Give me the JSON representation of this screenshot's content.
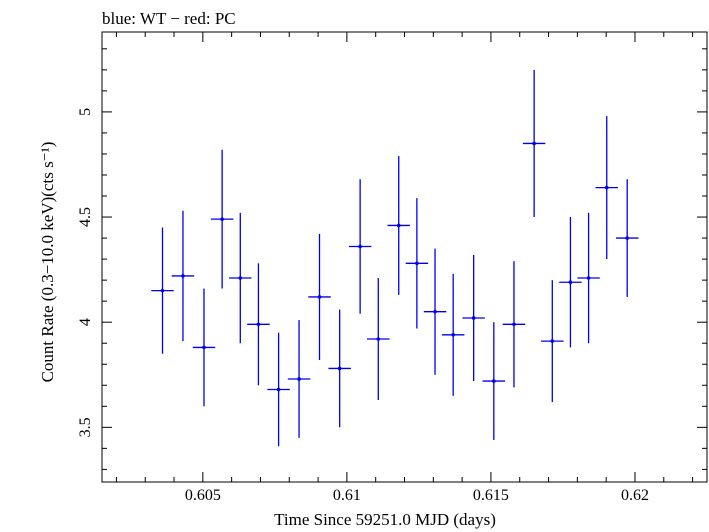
{
  "chart_data": {
    "type": "scatter",
    "title": "blue: WT − red: PC",
    "xlabel": "Time Since 59251.0 MJD (days)",
    "ylabel": "Count Rate (0.3−10.0 keV)(cts s⁻¹)",
    "xlim": [
      0.6015,
      0.6225
    ],
    "ylim": [
      3.24,
      5.38
    ],
    "x_ticks": [
      0.605,
      0.61,
      0.615,
      0.62
    ],
    "x_tick_labels": [
      "0.605",
      "0.61",
      "0.615",
      "0.62"
    ],
    "y_ticks": [
      3.5,
      4,
      4.5,
      5
    ],
    "y_tick_labels": [
      "3.5",
      "4",
      "4.5",
      "5"
    ],
    "grid": false,
    "series": [
      {
        "name": "WT",
        "color": "#0000ee",
        "points": [
          {
            "x": 0.6036,
            "y": 4.15,
            "xerr": 0.00039,
            "yerr": 0.3
          },
          {
            "x": 0.60431,
            "y": 4.22,
            "xerr": 0.00039,
            "yerr": 0.31
          },
          {
            "x": 0.60504,
            "y": 3.88,
            "xerr": 0.00039,
            "yerr": 0.28
          },
          {
            "x": 0.60567,
            "y": 4.49,
            "xerr": 0.00039,
            "yerr": 0.33
          },
          {
            "x": 0.6063,
            "y": 4.21,
            "xerr": 0.00039,
            "yerr": 0.31
          },
          {
            "x": 0.60693,
            "y": 3.99,
            "xerr": 0.00039,
            "yerr": 0.29
          },
          {
            "x": 0.60763,
            "y": 3.68,
            "xerr": 0.00039,
            "yerr": 0.27
          },
          {
            "x": 0.60834,
            "y": 3.73,
            "xerr": 0.00039,
            "yerr": 0.28
          },
          {
            "x": 0.60905,
            "y": 4.12,
            "xerr": 0.00039,
            "yerr": 0.3
          },
          {
            "x": 0.60975,
            "y": 3.78,
            "xerr": 0.00039,
            "yerr": 0.28
          },
          {
            "x": 0.61046,
            "y": 4.36,
            "xerr": 0.00039,
            "yerr": 0.32
          },
          {
            "x": 0.61109,
            "y": 3.92,
            "xerr": 0.00039,
            "yerr": 0.29
          },
          {
            "x": 0.6118,
            "y": 4.46,
            "xerr": 0.00039,
            "yerr": 0.33
          },
          {
            "x": 0.61243,
            "y": 4.28,
            "xerr": 0.00039,
            "yerr": 0.31
          },
          {
            "x": 0.61306,
            "y": 4.05,
            "xerr": 0.00039,
            "yerr": 0.3
          },
          {
            "x": 0.61369,
            "y": 3.94,
            "xerr": 0.00039,
            "yerr": 0.29
          },
          {
            "x": 0.6144,
            "y": 4.02,
            "xerr": 0.00039,
            "yerr": 0.3
          },
          {
            "x": 0.6151,
            "y": 3.72,
            "xerr": 0.00039,
            "yerr": 0.28
          },
          {
            "x": 0.6158,
            "y": 3.99,
            "xerr": 0.00039,
            "yerr": 0.3
          },
          {
            "x": 0.6165,
            "y": 4.85,
            "xerr": 0.00039,
            "yerr": 0.35
          },
          {
            "x": 0.61713,
            "y": 3.91,
            "xerr": 0.00039,
            "yerr": 0.29
          },
          {
            "x": 0.61776,
            "y": 4.19,
            "xerr": 0.00039,
            "yerr": 0.31
          },
          {
            "x": 0.61839,
            "y": 4.21,
            "xerr": 0.00039,
            "yerr": 0.31
          },
          {
            "x": 0.61902,
            "y": 4.64,
            "xerr": 0.00039,
            "yerr": 0.34
          },
          {
            "x": 0.61973,
            "y": 4.4,
            "xerr": 0.00039,
            "yerr": 0.28
          }
        ]
      }
    ]
  }
}
